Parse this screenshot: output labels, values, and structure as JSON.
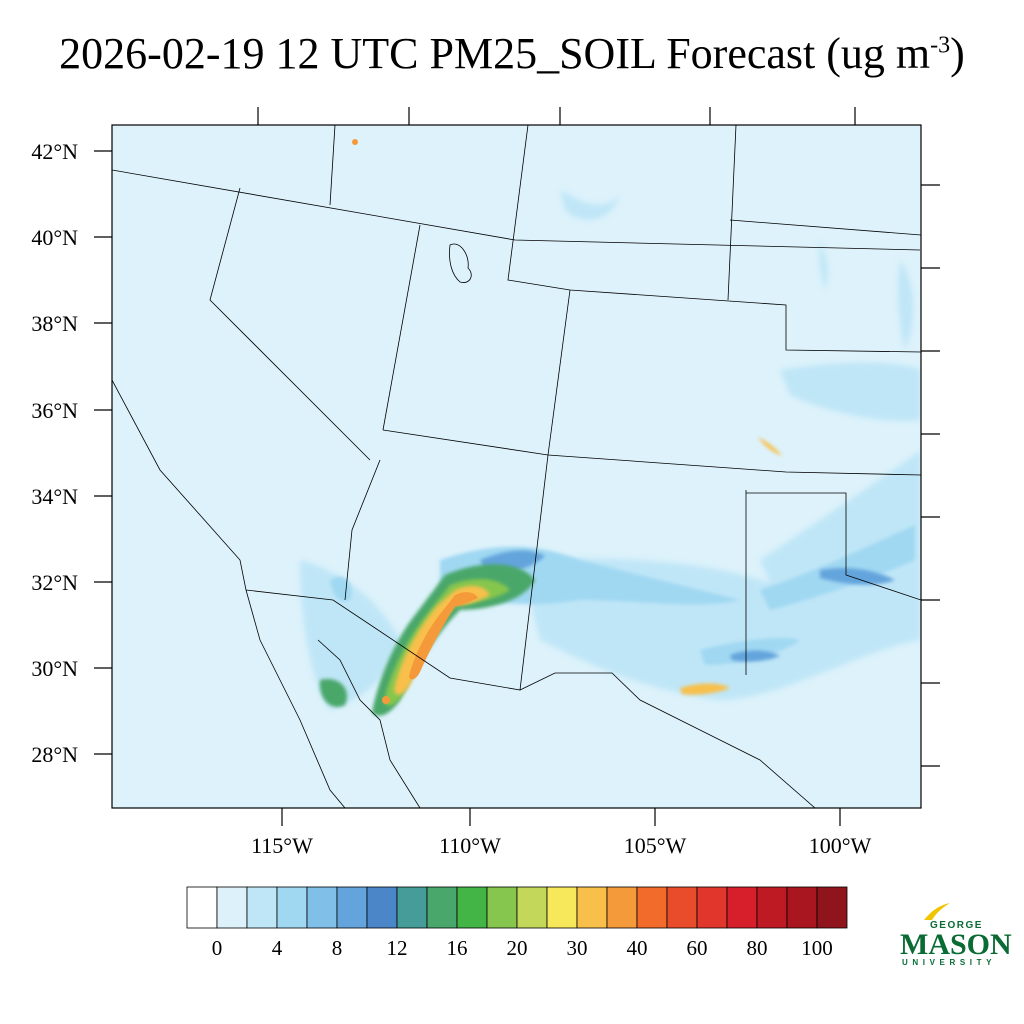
{
  "title": {
    "main": "2026-02-19 12 UTC PM25_SOIL Forecast (ug m",
    "sup": "-3",
    "close": ")"
  },
  "map": {
    "lat_labels": [
      "42°N",
      "40°N",
      "38°N",
      "36°N",
      "34°N",
      "32°N",
      "30°N",
      "28°N"
    ],
    "lon_labels": [
      "115°W",
      "110°W",
      "105°W",
      "100°W"
    ],
    "colors": {
      "background": "#ddf2fb",
      "boundary": "#000000"
    }
  },
  "colorbar": {
    "colors": [
      "#ffffff",
      "#ddf1fa",
      "#bfe6f7",
      "#a0d8f2",
      "#7fbfe8",
      "#63a4dc",
      "#4b86c9",
      "#469c98",
      "#4aa76b",
      "#43b547",
      "#86c64e",
      "#c3d75a",
      "#f7e75a",
      "#f8c04b",
      "#f59a3a",
      "#f26b2a",
      "#e84c2b",
      "#e0362b",
      "#d71f2b",
      "#be1a24",
      "#a9161f",
      "#8f141b"
    ],
    "labels": [
      "0",
      "4",
      "8",
      "12",
      "16",
      "20",
      "30",
      "40",
      "60",
      "80",
      "100"
    ]
  },
  "logo": {
    "top": "GEORGE",
    "main": "MASON",
    "sub": "UNIVERSITY",
    "color": "#0a6b35",
    "accent": "#f0c400"
  }
}
